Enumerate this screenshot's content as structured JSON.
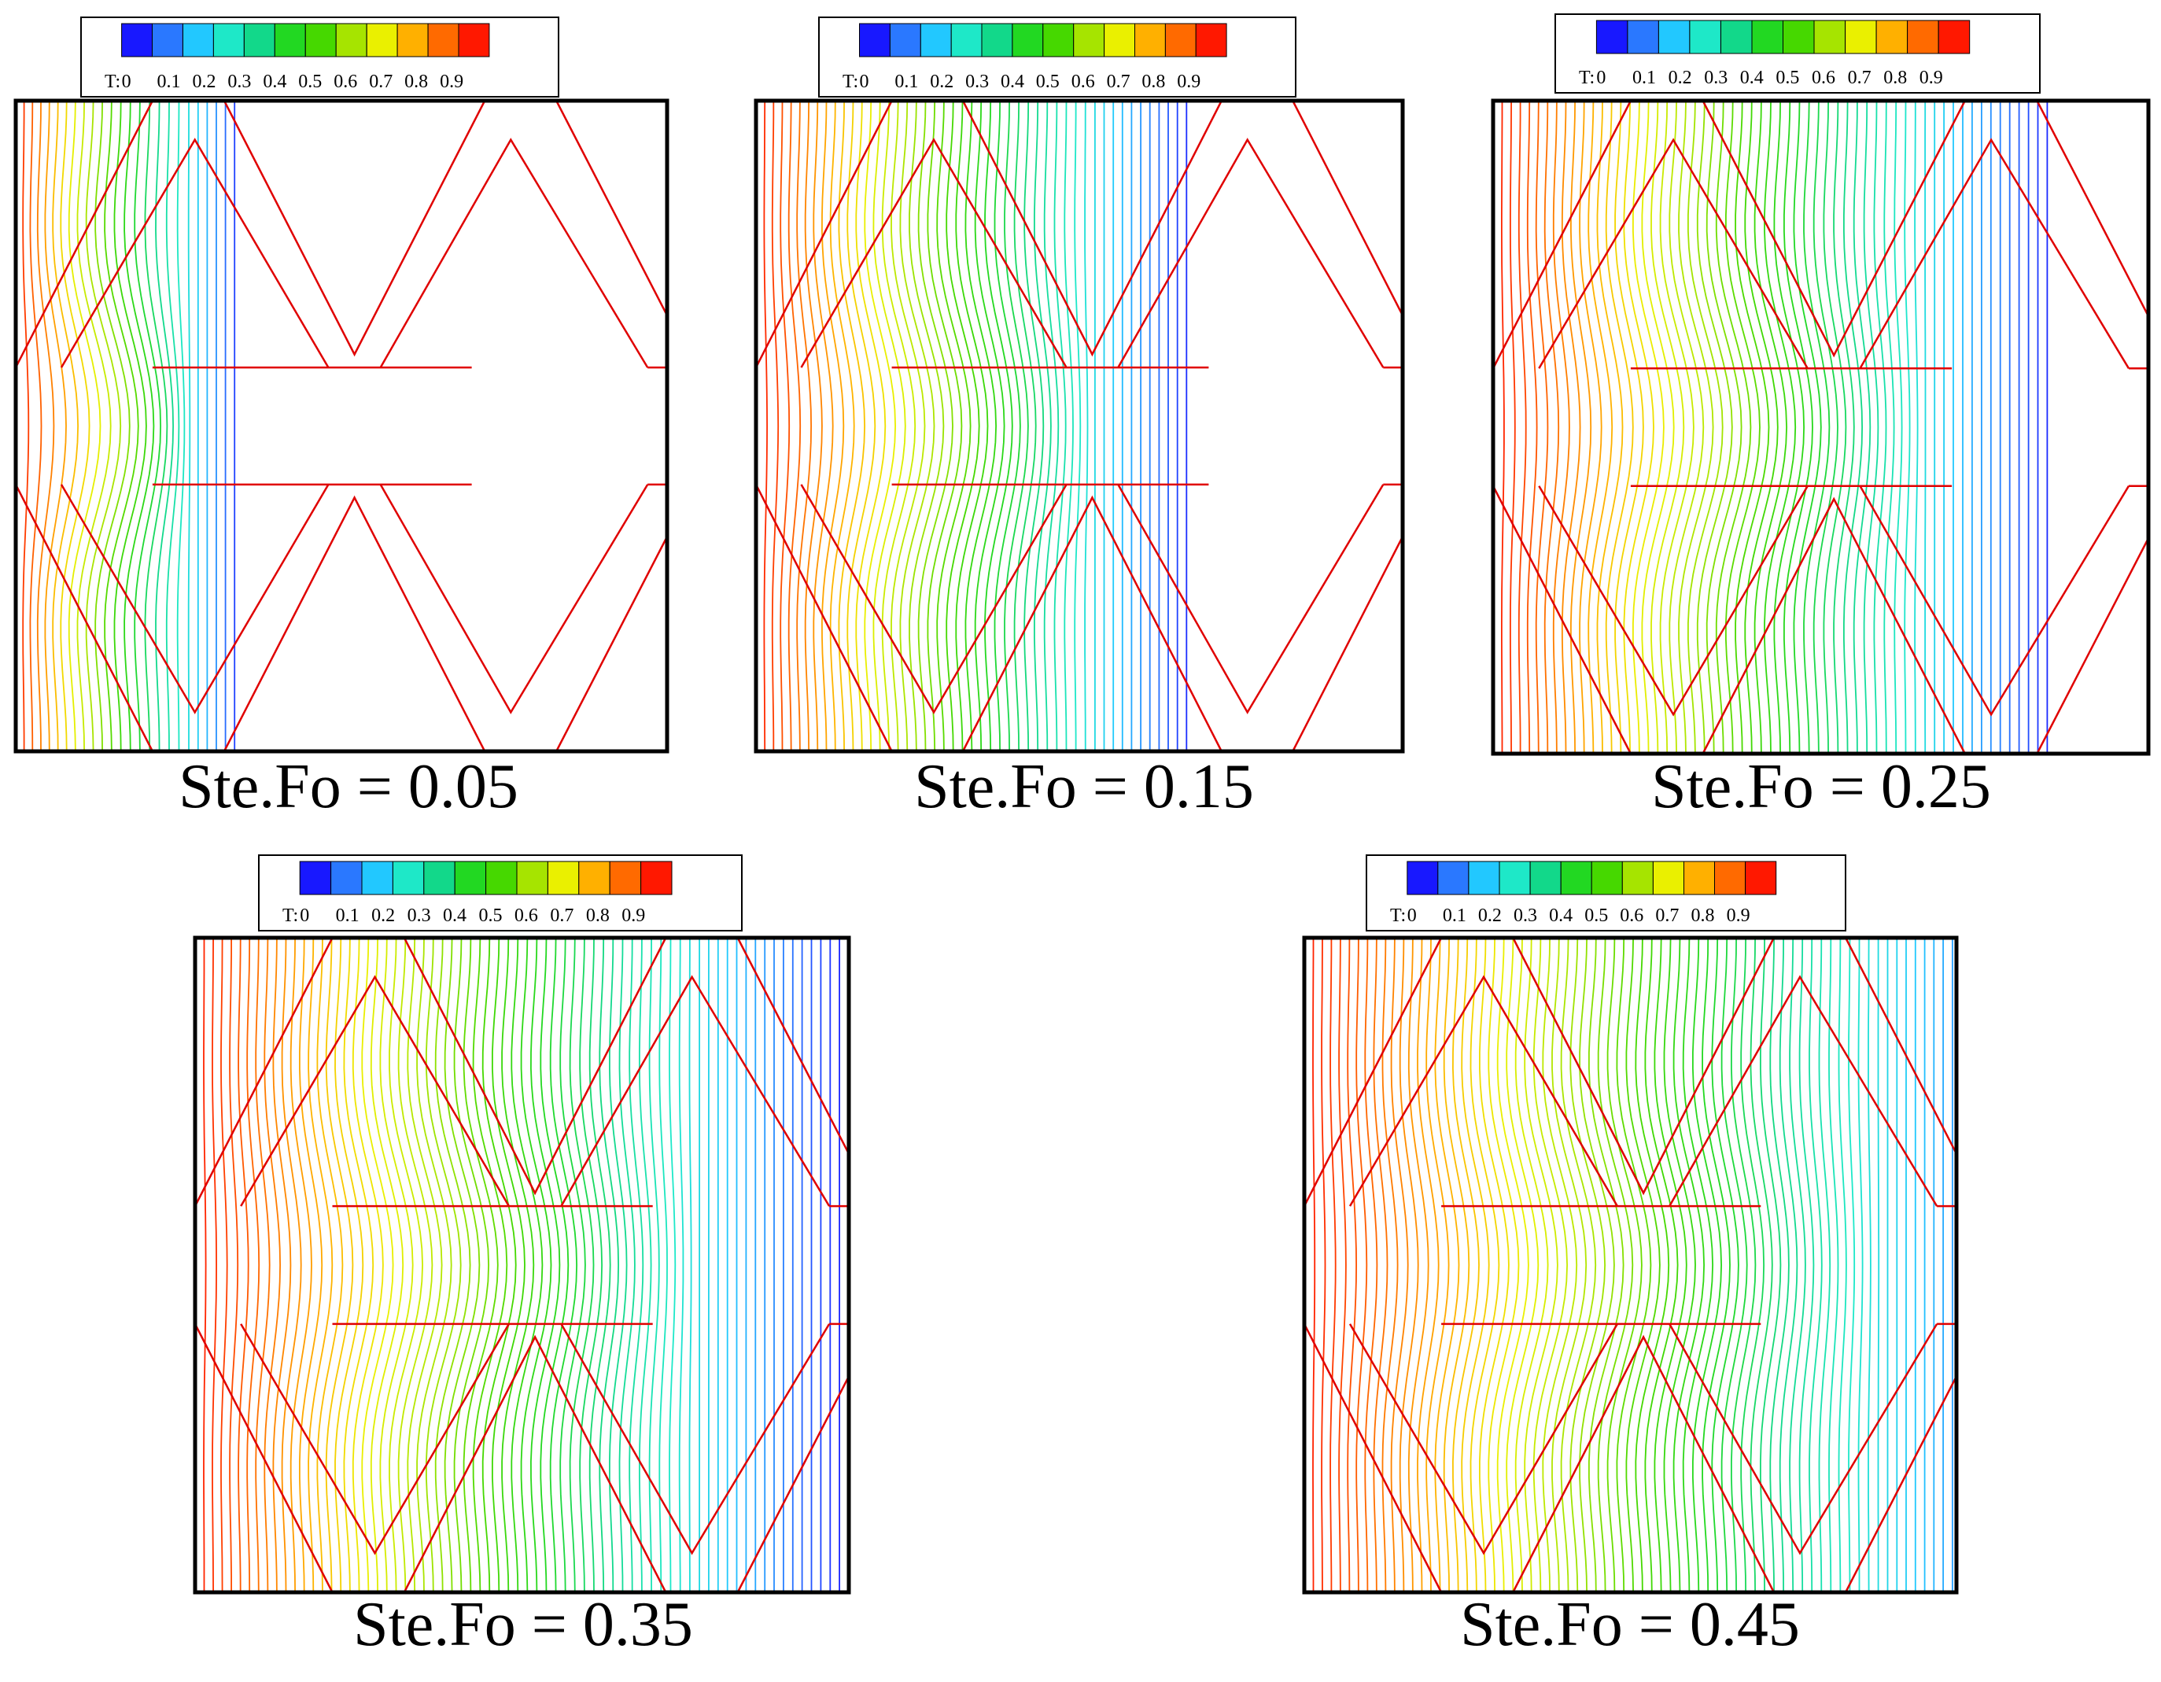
{
  "figure": {
    "colors": {
      "frame": "#000000",
      "fin": "#e00000",
      "background": "#ffffff"
    }
  },
  "colorbar": {
    "label": "T:",
    "tick_labels": [
      "0",
      "0.1",
      "0.2",
      "0.3",
      "0.4",
      "0.5",
      "0.6",
      "0.7",
      "0.8",
      "0.9"
    ],
    "palette": [
      "#1818ff",
      "#2a78ff",
      "#22c8ff",
      "#1ee8c8",
      "#12d88a",
      "#22d822",
      "#46d800",
      "#a6e400",
      "#eaf000",
      "#ffb000",
      "#ff6a00",
      "#ff1800"
    ]
  },
  "chart_data": [
    {
      "type": "contour",
      "title": "Ste.Fo = 0.05",
      "ste_fo": 0.05,
      "variable": "T",
      "levels": [
        0,
        0.1,
        0.2,
        0.3,
        0.4,
        0.5,
        0.6,
        0.7,
        0.8,
        0.9
      ],
      "front_extent": 0.35
    },
    {
      "type": "contour",
      "title": "Ste.Fo = 0.15",
      "ste_fo": 0.15,
      "variable": "T",
      "levels": [
        0,
        0.1,
        0.2,
        0.3,
        0.4,
        0.5,
        0.6,
        0.7,
        0.8,
        0.9
      ],
      "front_extent": 0.68
    },
    {
      "type": "contour",
      "title": "Ste.Fo = 0.25",
      "ste_fo": 0.25,
      "variable": "T",
      "levels": [
        0,
        0.1,
        0.2,
        0.3,
        0.4,
        0.5,
        0.6,
        0.7,
        0.8,
        0.9
      ],
      "front_extent": 0.86
    },
    {
      "type": "contour",
      "title": "Ste.Fo = 0.35",
      "ste_fo": 0.35,
      "variable": "T",
      "levels": [
        0,
        0.1,
        0.2,
        0.3,
        0.4,
        0.5,
        0.6,
        0.7,
        0.8,
        0.9
      ],
      "front_extent": 1.0
    },
    {
      "type": "contour",
      "title": "Ste.Fo = 0.45",
      "ste_fo": 0.45,
      "variable": "T",
      "levels": [
        0,
        0.1,
        0.2,
        0.3,
        0.4,
        0.5,
        0.6,
        0.7,
        0.8,
        0.9
      ],
      "front_extent": 1.15
    }
  ]
}
